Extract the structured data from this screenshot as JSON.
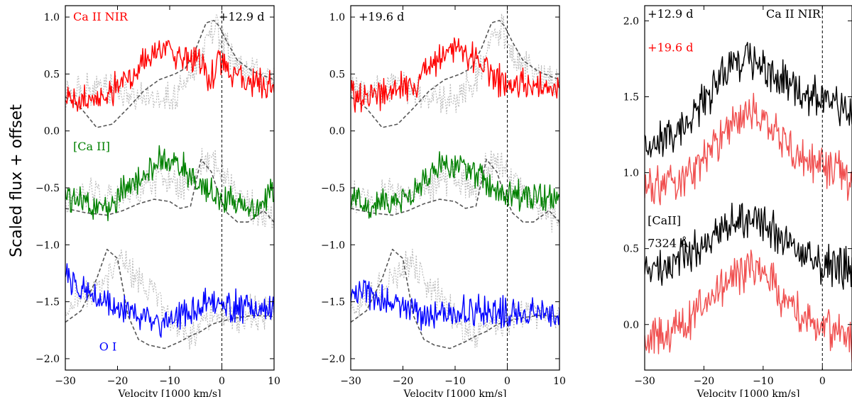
{
  "figure": {
    "ylabel": "Scaled flux + offset"
  },
  "chart_data": [
    {
      "type": "line",
      "panel": "left",
      "xlabel": "Velocity [1000 km/s]",
      "xlim": [
        -30,
        10
      ],
      "ylim": [
        -2.1,
        1.1
      ],
      "xticks": [
        -30,
        -20,
        -10,
        0,
        10
      ],
      "yticks": [
        -2.0,
        -1.5,
        -1.0,
        -0.5,
        0.0,
        0.5,
        1.0
      ],
      "vline": 0,
      "annotations": [
        {
          "text": "Ca II NIR",
          "color": "#ff0000",
          "x": -28.5,
          "y": 0.97
        },
        {
          "text": "+12.9 d",
          "color": "#000000",
          "x": -0.6,
          "y": 0.97
        },
        {
          "text": "[Ca II]",
          "color": "#008000",
          "x": -28.5,
          "y": -0.17
        },
        {
          "text": "O I",
          "color": "#0000ff",
          "x": -23.5,
          "y": -1.93
        }
      ],
      "series": [
        {
          "name": "Ca II NIR",
          "color": "#ff0000",
          "style": "solid",
          "x": [
            -30,
            -26,
            -22,
            -18,
            -15,
            -12,
            -9,
            -6,
            -4,
            -2,
            0,
            2,
            5,
            8,
            10
          ],
          "y": [
            0.26,
            0.27,
            0.31,
            0.48,
            0.62,
            0.71,
            0.69,
            0.66,
            0.57,
            0.47,
            0.62,
            0.5,
            0.44,
            0.4,
            0.38
          ]
        },
        {
          "name": "[Ca II]",
          "color": "#008000",
          "style": "solid",
          "x": [
            -30,
            -26,
            -22,
            -18,
            -15,
            -12,
            -9,
            -6,
            -4,
            -2,
            0,
            3,
            6,
            10
          ],
          "y": [
            -0.56,
            -0.65,
            -0.67,
            -0.5,
            -0.4,
            -0.28,
            -0.28,
            -0.38,
            -0.49,
            -0.55,
            -0.6,
            -0.62,
            -0.68,
            -0.55
          ]
        },
        {
          "name": "O I",
          "color": "#0000ff",
          "style": "solid",
          "x": [
            -30,
            -27,
            -24,
            -21,
            -18,
            -15,
            -12,
            -9,
            -6,
            -3,
            0,
            3,
            6,
            10
          ],
          "y": [
            -1.3,
            -1.38,
            -1.47,
            -1.52,
            -1.58,
            -1.65,
            -1.68,
            -1.62,
            -1.57,
            -1.52,
            -1.5,
            -1.54,
            -1.57,
            -1.58
          ]
        },
        {
          "name": "Ca II NIR model",
          "color": "#555555",
          "style": "dashed",
          "x": [
            -30,
            -27,
            -24,
            -21,
            -18,
            -15,
            -12,
            -9,
            -7,
            -5,
            -3,
            -1.5,
            -0.5,
            1,
            3,
            6,
            10
          ],
          "y": [
            0.3,
            0.2,
            0.03,
            0.06,
            0.2,
            0.35,
            0.45,
            0.5,
            0.55,
            0.72,
            0.95,
            0.97,
            0.92,
            0.78,
            0.62,
            0.52,
            0.45
          ]
        },
        {
          "name": "[Ca II] model",
          "color": "#555555",
          "style": "dashed",
          "x": [
            -30,
            -26,
            -22,
            -19,
            -16,
            -13,
            -10,
            -8,
            -6,
            -4,
            -2,
            -0.5,
            1,
            3,
            5,
            8,
            10
          ],
          "y": [
            -0.68,
            -0.72,
            -0.74,
            -0.7,
            -0.64,
            -0.6,
            -0.62,
            -0.68,
            -0.66,
            -0.25,
            -0.36,
            -0.57,
            -0.72,
            -0.8,
            -0.8,
            -0.7,
            -0.8
          ]
        },
        {
          "name": "O I model",
          "color": "#555555",
          "style": "dashed",
          "x": [
            -30,
            -27,
            -24,
            -22,
            -20,
            -18,
            -16,
            -14,
            -11,
            -8,
            -6,
            -4,
            -2,
            0,
            3,
            6,
            10
          ],
          "y": [
            -1.68,
            -1.58,
            -1.3,
            -1.04,
            -1.12,
            -1.62,
            -1.83,
            -1.88,
            -1.91,
            -1.85,
            -1.8,
            -1.76,
            -1.7,
            -1.67,
            -1.64,
            -1.62,
            -1.63
          ]
        },
        {
          "name": "Ca II NIR comparison",
          "color": "#bbbbbb",
          "style": "dotted",
          "x": [
            -30,
            -27,
            -24,
            -21,
            -18,
            -15,
            -12,
            -9,
            -6,
            -4,
            -2,
            -1,
            0,
            2,
            5,
            8,
            10
          ],
          "y": [
            0.33,
            0.35,
            0.4,
            0.4,
            0.33,
            0.3,
            0.28,
            0.32,
            0.45,
            0.66,
            0.85,
            0.9,
            0.8,
            0.62,
            0.52,
            0.46,
            0.44
          ]
        },
        {
          "name": "[Ca II] comparison",
          "color": "#bbbbbb",
          "style": "dotted",
          "x": [
            -30,
            -27,
            -24,
            -21,
            -18,
            -15,
            -12,
            -9,
            -6,
            -4,
            -2,
            0,
            3,
            6,
            10
          ],
          "y": [
            -0.6,
            -0.58,
            -0.55,
            -0.58,
            -0.55,
            -0.5,
            -0.4,
            -0.43,
            -0.5,
            -0.3,
            -0.25,
            -0.35,
            -0.55,
            -0.7,
            -0.8
          ]
        },
        {
          "name": "O I comparison",
          "color": "#bbbbbb",
          "style": "dotted",
          "x": [
            -30,
            -27,
            -24,
            -21,
            -19,
            -17,
            -15,
            -12,
            -9,
            -6,
            -3,
            0,
            3,
            6,
            10
          ],
          "y": [
            -1.6,
            -1.45,
            -1.4,
            -1.25,
            -1.15,
            -1.25,
            -1.35,
            -1.5,
            -1.72,
            -1.78,
            -1.68,
            -1.62,
            -1.62,
            -1.6,
            -1.6
          ]
        }
      ]
    },
    {
      "type": "line",
      "panel": "middle",
      "xlabel": "Velocity [1000 km/s]",
      "xlim": [
        -30,
        10
      ],
      "ylim": [
        -2.1,
        1.1
      ],
      "xticks": [
        -30,
        -20,
        -10,
        0,
        10
      ],
      "yticks": [
        -2.0,
        -1.5,
        -1.0,
        -0.5,
        0.0,
        0.5,
        1.0
      ],
      "vline": 0,
      "annotations": [
        {
          "text": "+19.6 d",
          "color": "#000000",
          "x": -28.5,
          "y": 0.97
        }
      ],
      "series": [
        {
          "name": "Ca II NIR",
          "color": "#ff0000",
          "style": "solid",
          "x": [
            -30,
            -26,
            -22,
            -18,
            -15,
            -12,
            -9,
            -6,
            -4,
            -2,
            0,
            3,
            6,
            10
          ],
          "y": [
            0.32,
            0.3,
            0.35,
            0.42,
            0.55,
            0.68,
            0.7,
            0.65,
            0.55,
            0.45,
            0.42,
            0.4,
            0.38,
            0.36
          ]
        },
        {
          "name": "[Ca II]",
          "color": "#008000",
          "style": "solid",
          "x": [
            -30,
            -26,
            -22,
            -18,
            -15,
            -12,
            -9,
            -6,
            -4,
            -2,
            0,
            3,
            6,
            10
          ],
          "y": [
            -0.62,
            -0.65,
            -0.62,
            -0.52,
            -0.4,
            -0.3,
            -0.28,
            -0.35,
            -0.45,
            -0.52,
            -0.55,
            -0.57,
            -0.58,
            -0.55
          ]
        },
        {
          "name": "O I",
          "color": "#0000ff",
          "style": "solid",
          "x": [
            -30,
            -27,
            -24,
            -21,
            -18,
            -15,
            -12,
            -9,
            -6,
            -3,
            0,
            3,
            6,
            10
          ],
          "y": [
            -1.38,
            -1.42,
            -1.48,
            -1.55,
            -1.58,
            -1.62,
            -1.62,
            -1.6,
            -1.58,
            -1.58,
            -1.6,
            -1.62,
            -1.6,
            -1.6
          ]
        },
        {
          "name": "Ca II NIR model",
          "color": "#555555",
          "style": "dashed",
          "x": [
            -30,
            -27,
            -24,
            -21,
            -18,
            -15,
            -12,
            -9,
            -7,
            -5,
            -3,
            -1.5,
            -0.5,
            1,
            3,
            6,
            10
          ],
          "y": [
            0.3,
            0.2,
            0.03,
            0.06,
            0.2,
            0.35,
            0.45,
            0.5,
            0.55,
            0.72,
            0.95,
            0.97,
            0.92,
            0.78,
            0.62,
            0.52,
            0.45
          ]
        },
        {
          "name": "[Ca II] model",
          "color": "#555555",
          "style": "dashed",
          "x": [
            -30,
            -26,
            -22,
            -19,
            -16,
            -13,
            -10,
            -8,
            -6,
            -4,
            -2,
            -0.5,
            1,
            3,
            5,
            8,
            10
          ],
          "y": [
            -0.68,
            -0.72,
            -0.74,
            -0.7,
            -0.64,
            -0.6,
            -0.62,
            -0.68,
            -0.66,
            -0.25,
            -0.36,
            -0.57,
            -0.72,
            -0.8,
            -0.8,
            -0.7,
            -0.8
          ]
        },
        {
          "name": "O I model",
          "color": "#555555",
          "style": "dashed",
          "x": [
            -30,
            -27,
            -24,
            -22,
            -20,
            -18,
            -16,
            -14,
            -11,
            -8,
            -6,
            -4,
            -2,
            0,
            3,
            6,
            10
          ],
          "y": [
            -1.68,
            -1.58,
            -1.3,
            -1.04,
            -1.12,
            -1.62,
            -1.83,
            -1.88,
            -1.91,
            -1.85,
            -1.8,
            -1.76,
            -1.7,
            -1.67,
            -1.64,
            -1.62,
            -1.63
          ]
        },
        {
          "name": "Ca II NIR comparison",
          "color": "#bbbbbb",
          "style": "dotted",
          "x": [
            -30,
            -27,
            -24,
            -21,
            -18,
            -15,
            -12,
            -9,
            -6,
            -4,
            -2,
            -1,
            0,
            2,
            5,
            8,
            10
          ],
          "y": [
            0.33,
            0.35,
            0.4,
            0.4,
            0.33,
            0.3,
            0.28,
            0.32,
            0.45,
            0.66,
            0.85,
            0.9,
            0.8,
            0.62,
            0.52,
            0.46,
            0.44
          ]
        },
        {
          "name": "[Ca II] comparison",
          "color": "#bbbbbb",
          "style": "dotted",
          "x": [
            -30,
            -27,
            -24,
            -21,
            -18,
            -15,
            -12,
            -9,
            -6,
            -4,
            -2,
            0,
            3,
            6,
            10
          ],
          "y": [
            -0.6,
            -0.58,
            -0.55,
            -0.58,
            -0.55,
            -0.5,
            -0.4,
            -0.43,
            -0.5,
            -0.3,
            -0.25,
            -0.35,
            -0.55,
            -0.7,
            -0.8
          ]
        },
        {
          "name": "O I comparison",
          "color": "#bbbbbb",
          "style": "dotted",
          "x": [
            -30,
            -27,
            -24,
            -21,
            -19,
            -17,
            -15,
            -12,
            -9,
            -6,
            -3,
            0,
            3,
            6,
            10
          ],
          "y": [
            -1.6,
            -1.45,
            -1.4,
            -1.25,
            -1.15,
            -1.25,
            -1.35,
            -1.5,
            -1.72,
            -1.78,
            -1.68,
            -1.62,
            -1.62,
            -1.6,
            -1.6
          ]
        }
      ]
    },
    {
      "type": "line",
      "panel": "right",
      "xlabel": "Velocity [1000 km/s]",
      "xlim": [
        -30,
        5
      ],
      "ylim": [
        -0.3,
        2.1
      ],
      "xticks": [
        -30,
        -20,
        -10,
        0
      ],
      "yticks": [
        0.0,
        0.5,
        1.0,
        1.5,
        2.0
      ],
      "vline": 0,
      "annotations": [
        {
          "text": "+12.9 d",
          "color": "#000000",
          "x": -29.5,
          "y": 2.02
        },
        {
          "text": "Ca II NIR",
          "color": "#000000",
          "x": -9.5,
          "y": 2.02
        },
        {
          "text": "+19.6 d",
          "color": "#ff0000",
          "x": -29.5,
          "y": 1.8
        },
        {
          "text": "[CaII]",
          "color": "#000000",
          "x": -29.5,
          "y": 0.66
        },
        {
          "text": "7324 Å",
          "color": "#000000",
          "x": -29.5,
          "y": 0.51
        }
      ],
      "series": [
        {
          "name": "Ca II NIR +12.9 d",
          "color": "#000000",
          "style": "solid",
          "x": [
            -30,
            -27,
            -24,
            -21,
            -18,
            -15,
            -12,
            -9,
            -6,
            -3,
            0,
            3,
            5
          ],
          "y": [
            1.15,
            1.22,
            1.3,
            1.42,
            1.6,
            1.72,
            1.75,
            1.65,
            1.6,
            1.5,
            1.48,
            1.4,
            1.35
          ]
        },
        {
          "name": "Ca II NIR +19.6 d",
          "color": "#f05050",
          "style": "solid",
          "x": [
            -30,
            -27,
            -24,
            -21,
            -18,
            -15,
            -12,
            -9,
            -6,
            -3,
            0,
            3,
            5
          ],
          "y": [
            0.92,
            0.9,
            0.95,
            1.05,
            1.2,
            1.35,
            1.4,
            1.3,
            1.2,
            1.1,
            1.05,
            1.0,
            0.95
          ]
        },
        {
          "name": "[CaII] +12.9 d",
          "color": "#000000",
          "style": "solid",
          "x": [
            -30,
            -27,
            -24,
            -21,
            -18,
            -15,
            -12,
            -9,
            -6,
            -3,
            0,
            3,
            5
          ],
          "y": [
            0.35,
            0.38,
            0.42,
            0.5,
            0.6,
            0.68,
            0.7,
            0.62,
            0.55,
            0.45,
            0.4,
            0.38,
            0.35
          ]
        },
        {
          "name": "[CaII] +19.6 d",
          "color": "#f05050",
          "style": "solid",
          "x": [
            -30,
            -27,
            -24,
            -21,
            -18,
            -15,
            -12,
            -9,
            -6,
            -3,
            0,
            3,
            5
          ],
          "y": [
            -0.12,
            -0.08,
            -0.02,
            0.1,
            0.22,
            0.32,
            0.38,
            0.3,
            0.15,
            0.05,
            0.0,
            -0.05,
            -0.1
          ]
        }
      ]
    }
  ]
}
